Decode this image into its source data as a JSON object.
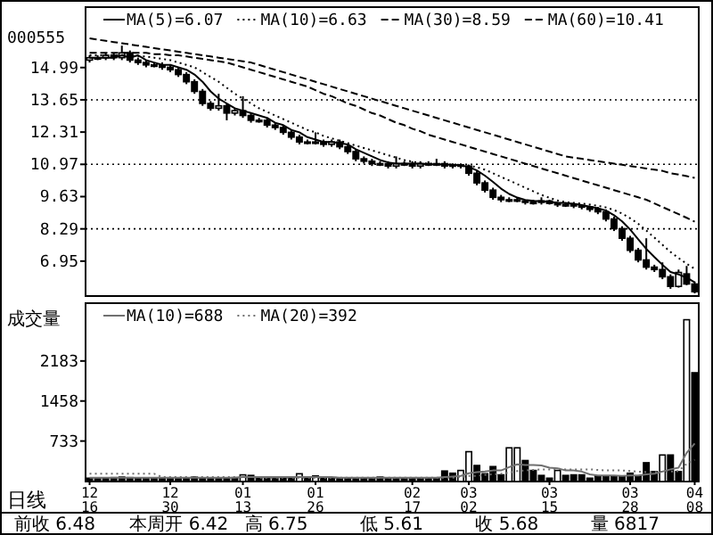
{
  "chart_data": [
    {
      "type": "candlestick",
      "title": "000555",
      "legend": "top",
      "ohlc": [
        [
          15.3,
          15.5,
          15.2,
          15.4
        ],
        [
          15.4,
          15.5,
          15.3,
          15.4
        ],
        [
          15.4,
          15.6,
          15.3,
          15.5
        ],
        [
          15.5,
          15.6,
          15.3,
          15.4
        ],
        [
          15.4,
          15.9,
          15.3,
          15.6
        ],
        [
          15.6,
          15.7,
          15.2,
          15.3
        ],
        [
          15.3,
          15.4,
          15.1,
          15.2
        ],
        [
          15.2,
          15.3,
          15.0,
          15.1
        ],
        [
          15.1,
          15.2,
          15.0,
          15.1
        ],
        [
          15.1,
          15.2,
          14.9,
          15.0
        ],
        [
          15.0,
          15.1,
          14.8,
          14.9
        ],
        [
          14.9,
          15.0,
          14.6,
          14.7
        ],
        [
          14.7,
          14.8,
          14.3,
          14.4
        ],
        [
          14.4,
          14.5,
          13.9,
          14.0
        ],
        [
          14.0,
          14.1,
          13.4,
          13.5
        ],
        [
          13.5,
          13.6,
          13.2,
          13.3
        ],
        [
          13.3,
          13.9,
          13.2,
          13.4
        ],
        [
          13.4,
          13.5,
          12.8,
          13.1
        ],
        [
          13.1,
          13.3,
          13.0,
          13.2
        ],
        [
          13.2,
          13.8,
          12.9,
          13.0
        ],
        [
          13.0,
          13.1,
          12.7,
          12.8
        ],
        [
          12.8,
          12.9,
          12.7,
          12.8
        ],
        [
          12.8,
          12.9,
          12.5,
          12.6
        ],
        [
          12.6,
          12.7,
          12.4,
          12.5
        ],
        [
          12.5,
          12.6,
          12.2,
          12.3
        ],
        [
          12.3,
          12.4,
          12.0,
          12.1
        ],
        [
          12.1,
          12.2,
          11.8,
          11.9
        ],
        [
          11.9,
          12.0,
          11.8,
          11.9
        ],
        [
          11.9,
          12.3,
          11.8,
          11.9
        ],
        [
          11.9,
          12.0,
          11.7,
          11.8
        ],
        [
          11.8,
          12.0,
          11.7,
          11.9
        ],
        [
          11.9,
          12.0,
          11.6,
          11.7
        ],
        [
          11.7,
          11.8,
          11.4,
          11.5
        ],
        [
          11.5,
          11.6,
          11.1,
          11.2
        ],
        [
          11.2,
          11.3,
          11.0,
          11.1
        ],
        [
          11.1,
          11.2,
          10.9,
          11.0
        ],
        [
          11.0,
          11.1,
          10.9,
          11.0
        ],
        [
          11.0,
          11.1,
          10.8,
          10.9
        ],
        [
          10.9,
          11.3,
          10.8,
          11.0
        ],
        [
          11.0,
          11.1,
          10.9,
          11.0
        ],
        [
          11.0,
          11.1,
          10.8,
          10.9
        ],
        [
          10.9,
          11.1,
          10.8,
          11.0
        ],
        [
          11.0,
          11.1,
          10.9,
          10.95
        ],
        [
          10.95,
          11.2,
          10.9,
          11.0
        ],
        [
          11.0,
          11.1,
          10.8,
          10.9
        ],
        [
          10.9,
          11.0,
          10.8,
          10.95
        ],
        [
          10.95,
          11.0,
          10.8,
          10.9
        ],
        [
          10.9,
          10.95,
          10.5,
          10.6
        ],
        [
          10.6,
          10.7,
          10.1,
          10.2
        ],
        [
          10.2,
          10.3,
          9.8,
          9.9
        ],
        [
          9.9,
          10.0,
          9.5,
          9.6
        ],
        [
          9.6,
          9.7,
          9.4,
          9.5
        ],
        [
          9.5,
          9.6,
          9.4,
          9.5
        ],
        [
          9.5,
          9.6,
          9.4,
          9.45
        ],
        [
          9.45,
          9.5,
          9.3,
          9.4
        ],
        [
          9.4,
          9.5,
          9.3,
          9.4
        ],
        [
          9.4,
          9.6,
          9.3,
          9.45
        ],
        [
          9.45,
          9.5,
          9.3,
          9.35
        ],
        [
          9.35,
          9.4,
          9.2,
          9.3
        ],
        [
          9.3,
          9.4,
          9.2,
          9.3
        ],
        [
          9.3,
          9.35,
          9.15,
          9.25
        ],
        [
          9.25,
          9.3,
          9.1,
          9.2
        ],
        [
          9.2,
          9.25,
          9.0,
          9.1
        ],
        [
          9.1,
          9.2,
          8.9,
          9.0
        ],
        [
          9.0,
          9.1,
          8.6,
          8.7
        ],
        [
          8.7,
          8.8,
          8.2,
          8.3
        ],
        [
          8.3,
          8.4,
          7.8,
          7.9
        ],
        [
          7.9,
          8.0,
          7.3,
          7.4
        ],
        [
          7.4,
          7.5,
          6.9,
          7.0
        ],
        [
          7.0,
          7.9,
          6.6,
          6.7
        ],
        [
          6.7,
          6.8,
          6.5,
          6.6
        ],
        [
          6.6,
          6.9,
          6.2,
          6.3
        ],
        [
          6.3,
          6.4,
          5.8,
          5.9
        ],
        [
          5.9,
          6.6,
          5.85,
          6.48
        ],
        [
          6.42,
          6.75,
          5.95,
          6.0
        ],
        [
          6.0,
          6.1,
          5.61,
          5.68
        ]
      ],
      "series": [
        {
          "name": "MA(5)=6.07",
          "type": "line",
          "color": "#000000",
          "line_style": "solid",
          "values": [
            15.4,
            15.4,
            15.4,
            15.4,
            15.5,
            15.4,
            15.5,
            15.3,
            15.2,
            15.1,
            15.1,
            15.0,
            14.9,
            14.7,
            14.4,
            14.0,
            13.7,
            13.5,
            13.3,
            13.2,
            13.1,
            13.0,
            12.9,
            12.7,
            12.6,
            12.4,
            12.3,
            12.1,
            12.0,
            11.9,
            11.9,
            11.85,
            11.8,
            11.6,
            11.45,
            11.3,
            11.15,
            11.05,
            11.0,
            11.0,
            11.0,
            11.0,
            10.97,
            10.97,
            10.96,
            10.95,
            10.93,
            10.86,
            10.72,
            10.5,
            10.24,
            9.96,
            9.74,
            9.59,
            9.49,
            9.45,
            9.44,
            9.41,
            9.38,
            9.36,
            9.33,
            9.28,
            9.21,
            9.15,
            9.05,
            8.86,
            8.6,
            8.26,
            7.86,
            7.46,
            7.12,
            6.8,
            6.5,
            6.4,
            6.26,
            6.07
          ]
        },
        {
          "name": "MA(10)=6.63",
          "type": "line",
          "color": "#000000",
          "line_style": "dotted",
          "values": [
            15.5,
            15.5,
            15.5,
            15.5,
            15.5,
            15.5,
            15.45,
            15.45,
            15.4,
            15.35,
            15.3,
            15.2,
            15.1,
            15.0,
            14.8,
            14.6,
            14.4,
            14.15,
            13.9,
            13.7,
            13.5,
            13.3,
            13.15,
            13.0,
            12.85,
            12.7,
            12.55,
            12.4,
            12.3,
            12.15,
            12.05,
            11.95,
            11.85,
            11.75,
            11.65,
            11.55,
            11.45,
            11.35,
            11.25,
            11.15,
            11.08,
            11.02,
            11.0,
            10.98,
            10.97,
            10.96,
            10.95,
            10.92,
            10.85,
            10.75,
            10.6,
            10.45,
            10.3,
            10.15,
            10.0,
            9.85,
            9.7,
            9.58,
            9.47,
            9.4,
            9.37,
            9.34,
            9.3,
            9.25,
            9.18,
            9.07,
            8.93,
            8.73,
            8.5,
            8.22,
            7.93,
            7.63,
            7.33,
            7.08,
            6.84,
            6.63
          ]
        },
        {
          "name": "MA(30)=8.59",
          "type": "line",
          "color": "#000000",
          "line_style": "dashed",
          "values": [
            15.6,
            15.6,
            15.6,
            15.6,
            15.6,
            15.6,
            15.6,
            15.6,
            15.55,
            15.55,
            15.5,
            15.5,
            15.45,
            15.4,
            15.35,
            15.3,
            15.25,
            15.2,
            15.1,
            15.0,
            14.9,
            14.8,
            14.7,
            14.6,
            14.5,
            14.4,
            14.3,
            14.2,
            14.05,
            13.9,
            13.8,
            13.65,
            13.5,
            13.4,
            13.25,
            13.1,
            13.0,
            12.85,
            12.7,
            12.6,
            12.45,
            12.35,
            12.2,
            12.1,
            12.0,
            11.9,
            11.8,
            11.7,
            11.6,
            11.5,
            11.4,
            11.3,
            11.2,
            11.1,
            11.0,
            10.9,
            10.8,
            10.7,
            10.6,
            10.5,
            10.4,
            10.3,
            10.2,
            10.1,
            10.0,
            9.9,
            9.8,
            9.7,
            9.6,
            9.5,
            9.35,
            9.2,
            9.05,
            8.9,
            8.75,
            8.59
          ]
        },
        {
          "name": "MA(60)=10.41",
          "type": "line",
          "color": "#000000",
          "line_style": "dashed",
          "values": [
            16.2,
            16.15,
            16.1,
            16.05,
            16.0,
            15.95,
            15.9,
            15.85,
            15.8,
            15.75,
            15.7,
            15.65,
            15.6,
            15.55,
            15.5,
            15.45,
            15.4,
            15.35,
            15.3,
            15.25,
            15.2,
            15.1,
            15.0,
            14.9,
            14.8,
            14.7,
            14.6,
            14.5,
            14.4,
            14.3,
            14.2,
            14.1,
            14.0,
            13.9,
            13.8,
            13.7,
            13.6,
            13.5,
            13.4,
            13.3,
            13.2,
            13.1,
            13.0,
            12.9,
            12.8,
            12.7,
            12.6,
            12.5,
            12.4,
            12.3,
            12.2,
            12.1,
            12.0,
            11.9,
            11.8,
            11.7,
            11.6,
            11.5,
            11.4,
            11.3,
            11.25,
            11.2,
            11.15,
            11.1,
            11.05,
            11.0,
            10.95,
            10.9,
            10.85,
            10.8,
            10.75,
            10.7,
            10.6,
            10.55,
            10.48,
            10.41
          ]
        }
      ],
      "ylim": [
        5.5,
        17.5
      ],
      "yticks": [
        14.99,
        13.65,
        12.31,
        10.97,
        9.63,
        8.29,
        6.95
      ],
      "ref_lines": [
        {
          "axis": "y",
          "value": 13.65,
          "line_style": "dotted",
          "color": "#000000"
        },
        {
          "axis": "y",
          "value": 10.97,
          "line_style": "dotted",
          "color": "#000000"
        },
        {
          "axis": "y",
          "value": 8.29,
          "line_style": "dotted",
          "color": "#000000"
        }
      ]
    },
    {
      "type": "bar",
      "ylabel": "成交量",
      "legend": "top",
      "categories": [
        "12\n16",
        null,
        null,
        null,
        null,
        null,
        null,
        null,
        null,
        null,
        "12\n30",
        null,
        null,
        null,
        null,
        null,
        null,
        null,
        null,
        "01\n13",
        null,
        null,
        null,
        null,
        null,
        null,
        null,
        null,
        "01\n26",
        null,
        null,
        null,
        null,
        null,
        null,
        null,
        null,
        null,
        null,
        null,
        "02\n17",
        null,
        null,
        null,
        null,
        null,
        null,
        "03\n02",
        null,
        null,
        null,
        null,
        null,
        null,
        null,
        null,
        null,
        "03\n15",
        null,
        null,
        null,
        null,
        null,
        null,
        null,
        null,
        null,
        "03\n28",
        null,
        null,
        null,
        null,
        null,
        null,
        null,
        "04\n08"
      ],
      "values": [
        60,
        50,
        60,
        70,
        80,
        70,
        60,
        50,
        50,
        60,
        50,
        50,
        60,
        80,
        60,
        50,
        50,
        60,
        70,
        120,
        110,
        60,
        50,
        50,
        60,
        60,
        140,
        70,
        100,
        60,
        50,
        50,
        60,
        50,
        60,
        50,
        80,
        60,
        50,
        50,
        60,
        60,
        60,
        60,
        190,
        150,
        200,
        540,
        290,
        140,
        270,
        120,
        610,
        610,
        380,
        200,
        110,
        60,
        200,
        110,
        120,
        120,
        60,
        100,
        100,
        100,
        100,
        150,
        100,
        340,
        180,
        480,
        480,
        180,
        2930,
        1970
      ],
      "colors": [
        "#000000",
        "#000000",
        "#000000",
        "#000000",
        "#000000",
        "#000000",
        "#000000",
        "#000000",
        "#000000",
        "#000000",
        "#000000",
        "#000000",
        "#000000",
        "#000000",
        "#000000",
        "#000000",
        "#000000",
        "#000000",
        "#000000",
        "#ffffff",
        "#000000",
        "#000000",
        "#000000",
        "#000000",
        "#000000",
        "#000000",
        "#ffffff",
        "#000000",
        "#ffffff",
        "#000000",
        "#000000",
        "#000000",
        "#000000",
        "#000000",
        "#000000",
        "#000000",
        "#000000",
        "#000000",
        "#000000",
        "#000000",
        "#000000",
        "#000000",
        "#000000",
        "#000000",
        "#000000",
        "#000000",
        "#ffffff",
        "#ffffff",
        "#000000",
        "#000000",
        "#000000",
        "#000000",
        "#ffffff",
        "#ffffff",
        "#000000",
        "#000000",
        "#000000",
        "#000000",
        "#ffffff",
        "#000000",
        "#000000",
        "#000000",
        "#000000",
        "#000000",
        "#000000",
        "#000000",
        "#000000",
        "#000000",
        "#000000",
        "#000000",
        "#000000",
        "#ffffff",
        "#000000",
        "#000000",
        "#ffffff",
        "#000000"
      ],
      "series": [
        {
          "name": "MA(10)=688",
          "type": "line",
          "color": "#707070",
          "line_style": "solid",
          "values": [
            70,
            70,
            70,
            70,
            70,
            70,
            70,
            70,
            70,
            70,
            70,
            70,
            70,
            70,
            70,
            70,
            70,
            70,
            70,
            80,
            80,
            80,
            80,
            80,
            80,
            80,
            80,
            80,
            80,
            80,
            80,
            70,
            70,
            70,
            70,
            70,
            70,
            70,
            70,
            70,
            70,
            70,
            70,
            70,
            80,
            90,
            100,
            150,
            170,
            180,
            200,
            200,
            260,
            310,
            300,
            300,
            290,
            250,
            240,
            200,
            200,
            180,
            130,
            110,
            110,
            110,
            100,
            110,
            110,
            130,
            140,
            180,
            220,
            250,
            520,
            688
          ]
        },
        {
          "name": "MA(20)=392",
          "type": "line",
          "color": "#707070",
          "line_style": "dotted",
          "values": [
            140,
            140,
            140,
            140,
            140,
            140,
            140,
            140,
            140,
            80,
            80,
            80,
            80,
            80,
            80,
            80,
            80,
            80,
            80,
            80,
            80,
            70,
            70,
            70,
            70,
            70,
            70,
            70,
            70,
            70,
            70,
            70,
            70,
            70,
            70,
            70,
            70,
            70,
            70,
            70,
            70,
            70,
            70,
            70,
            70,
            70,
            80,
            100,
            100,
            120,
            130,
            140,
            160,
            190,
            200,
            210,
            220,
            220,
            230,
            220,
            220,
            220,
            220,
            210,
            200,
            200,
            200,
            190,
            180,
            170,
            170,
            180,
            180,
            190,
            320,
            392
          ]
        }
      ],
      "ylim": [
        0,
        3230
      ],
      "yticks": [
        733,
        1458,
        2183
      ],
      "annotations": [
        "日线",
        "前收 6.48",
        "本周开 6.42",
        "高 6.75",
        "低 5.61",
        "收 5.68",
        "量 6817"
      ]
    }
  ]
}
